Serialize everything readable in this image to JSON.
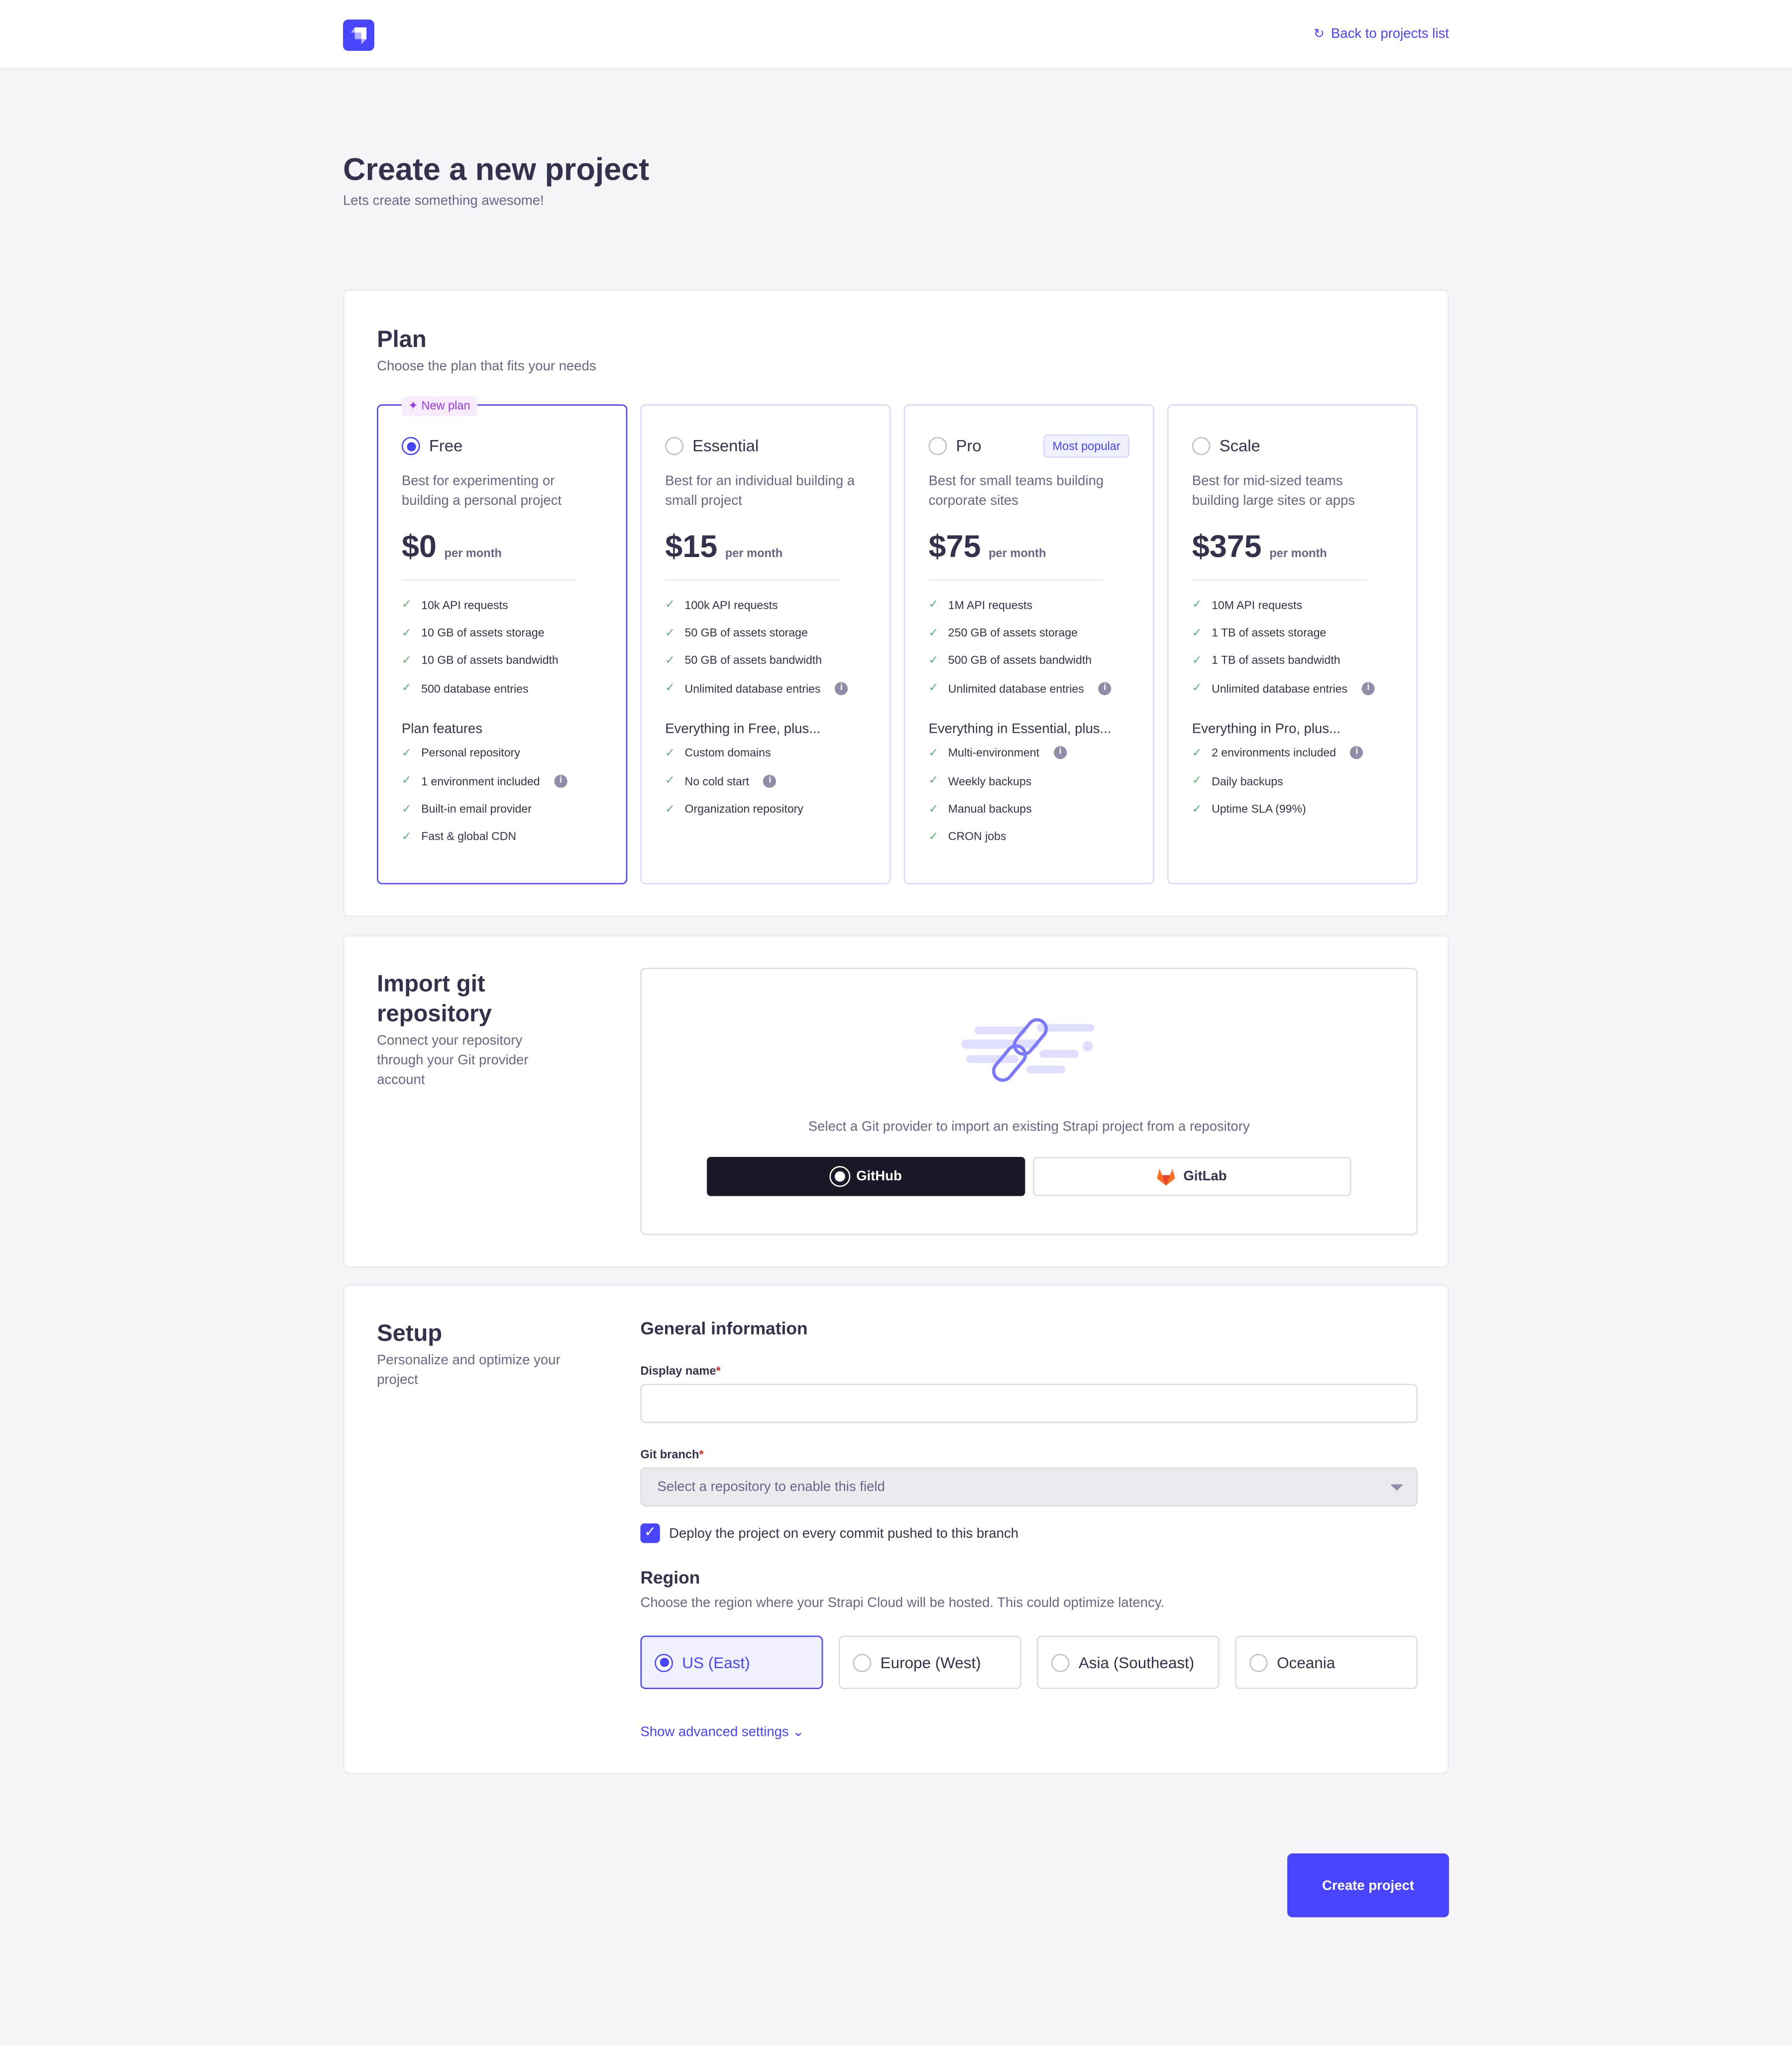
{
  "header": {
    "back_label": "Back to projects list"
  },
  "page": {
    "title": "Create a new project",
    "subtitle": "Lets create something awesome!"
  },
  "plan": {
    "title": "Plan",
    "subtitle": "Choose the plan that fits your needs",
    "new_badge": "New plan",
    "popular_badge": "Most popular",
    "per": "per month",
    "plans": [
      {
        "name": "Free",
        "selected": true,
        "desc": "Best for experimenting or building a personal project",
        "price": "$0",
        "limits": [
          "10k API requests",
          "10 GB of assets storage",
          "10 GB of assets bandwidth",
          "500 database entries"
        ],
        "features_title": "Plan features",
        "features": [
          "Personal repository",
          "1 environment included",
          "Built-in email provider",
          "Fast & global CDN"
        ]
      },
      {
        "name": "Essential",
        "selected": false,
        "desc": "Best for an individual building a small project",
        "price": "$15",
        "limits": [
          "100k API requests",
          "50 GB of assets storage",
          "50 GB of assets bandwidth",
          "Unlimited database entries"
        ],
        "features_title": "Everything in Free, plus...",
        "features": [
          "Custom domains",
          "No cold start",
          "Organization repository"
        ]
      },
      {
        "name": "Pro",
        "selected": false,
        "desc": "Best for small teams building corporate sites",
        "price": "$75",
        "limits": [
          "1M API requests",
          "250 GB of assets storage",
          "500 GB of assets bandwidth",
          "Unlimited database entries"
        ],
        "features_title": "Everything in Essential, plus...",
        "features": [
          "Multi-environment",
          "Weekly backups",
          "Manual backups",
          "CRON jobs"
        ]
      },
      {
        "name": "Scale",
        "selected": false,
        "desc": "Best for mid-sized teams building large sites or apps",
        "price": "$375",
        "limits": [
          "10M API requests",
          "1 TB of assets storage",
          "1 TB of assets bandwidth",
          "Unlimited database entries"
        ],
        "features_title": "Everything in Pro, plus...",
        "features": [
          "2 environments included",
          "Daily backups",
          "Uptime SLA (99%)"
        ]
      }
    ]
  },
  "git": {
    "title": "Import git repository",
    "subtitle": "Connect your repository through your Git provider account",
    "prompt": "Select a Git provider to import an existing Strapi project from a repository",
    "github": "GitHub",
    "gitlab": "GitLab"
  },
  "setup": {
    "title": "Setup",
    "subtitle": "Personalize and optimize your project",
    "general": "General information",
    "display_name_label": "Display name",
    "display_name_value": "",
    "git_branch_label": "Git branch",
    "git_branch_placeholder": "Select a repository to enable this field",
    "deploy_label": "Deploy the project on every commit pushed to this branch",
    "deploy_checked": true,
    "region_title": "Region",
    "region_desc": "Choose the region where your Strapi Cloud will be hosted. This could optimize latency.",
    "regions": [
      "US (East)",
      "Europe (West)",
      "Asia (Southeast)",
      "Oceania"
    ],
    "selected_region": "US (East)",
    "advanced": "Show advanced settings"
  },
  "create_label": "Create project",
  "colors": {
    "primary": "#4945ff",
    "check": "#5cb176",
    "text": "#32324d",
    "muted": "#666687"
  }
}
